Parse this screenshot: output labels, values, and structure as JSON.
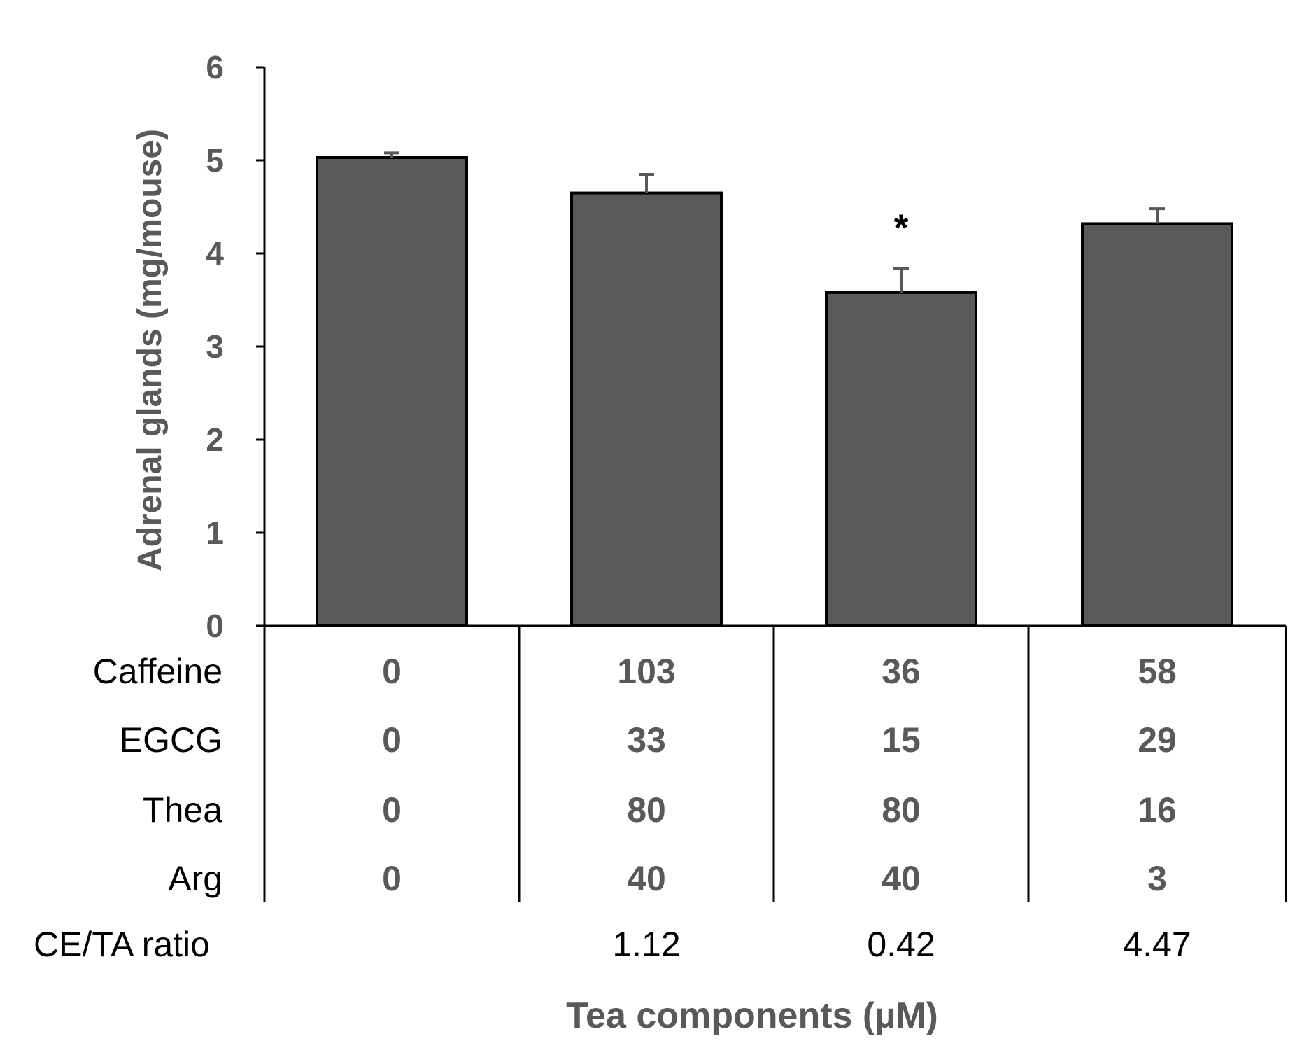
{
  "chart_data": {
    "type": "bar",
    "ylabel": "Adrenal glands (mg/mouse)",
    "xlabel": "Tea components (µM)",
    "ylim": [
      0,
      6
    ],
    "yticks": [
      "0",
      "1",
      "2",
      "3",
      "4",
      "5",
      "6"
    ],
    "values": [
      5.03,
      4.65,
      3.58,
      4.32
    ],
    "errors": [
      0.05,
      0.2,
      0.26,
      0.16
    ],
    "significance": [
      "",
      "",
      "*",
      ""
    ],
    "colors": {
      "bar": "#595959",
      "bar_edge": "#000000",
      "axis": "#000000"
    },
    "table": {
      "rows": [
        {
          "label": "Caffeine",
          "values": [
            "0",
            "103",
            "36",
            "58"
          ]
        },
        {
          "label": "EGCG",
          "values": [
            "0",
            "33",
            "15",
            "29"
          ]
        },
        {
          "label": "Thea",
          "values": [
            "0",
            "80",
            "80",
            "16"
          ]
        },
        {
          "label": "Arg",
          "values": [
            "0",
            "40",
            "40",
            "3"
          ]
        }
      ],
      "ratio_label": "CE/TA ratio",
      "ratio_values": [
        "",
        "1.12",
        "0.42",
        "4.47"
      ]
    }
  }
}
